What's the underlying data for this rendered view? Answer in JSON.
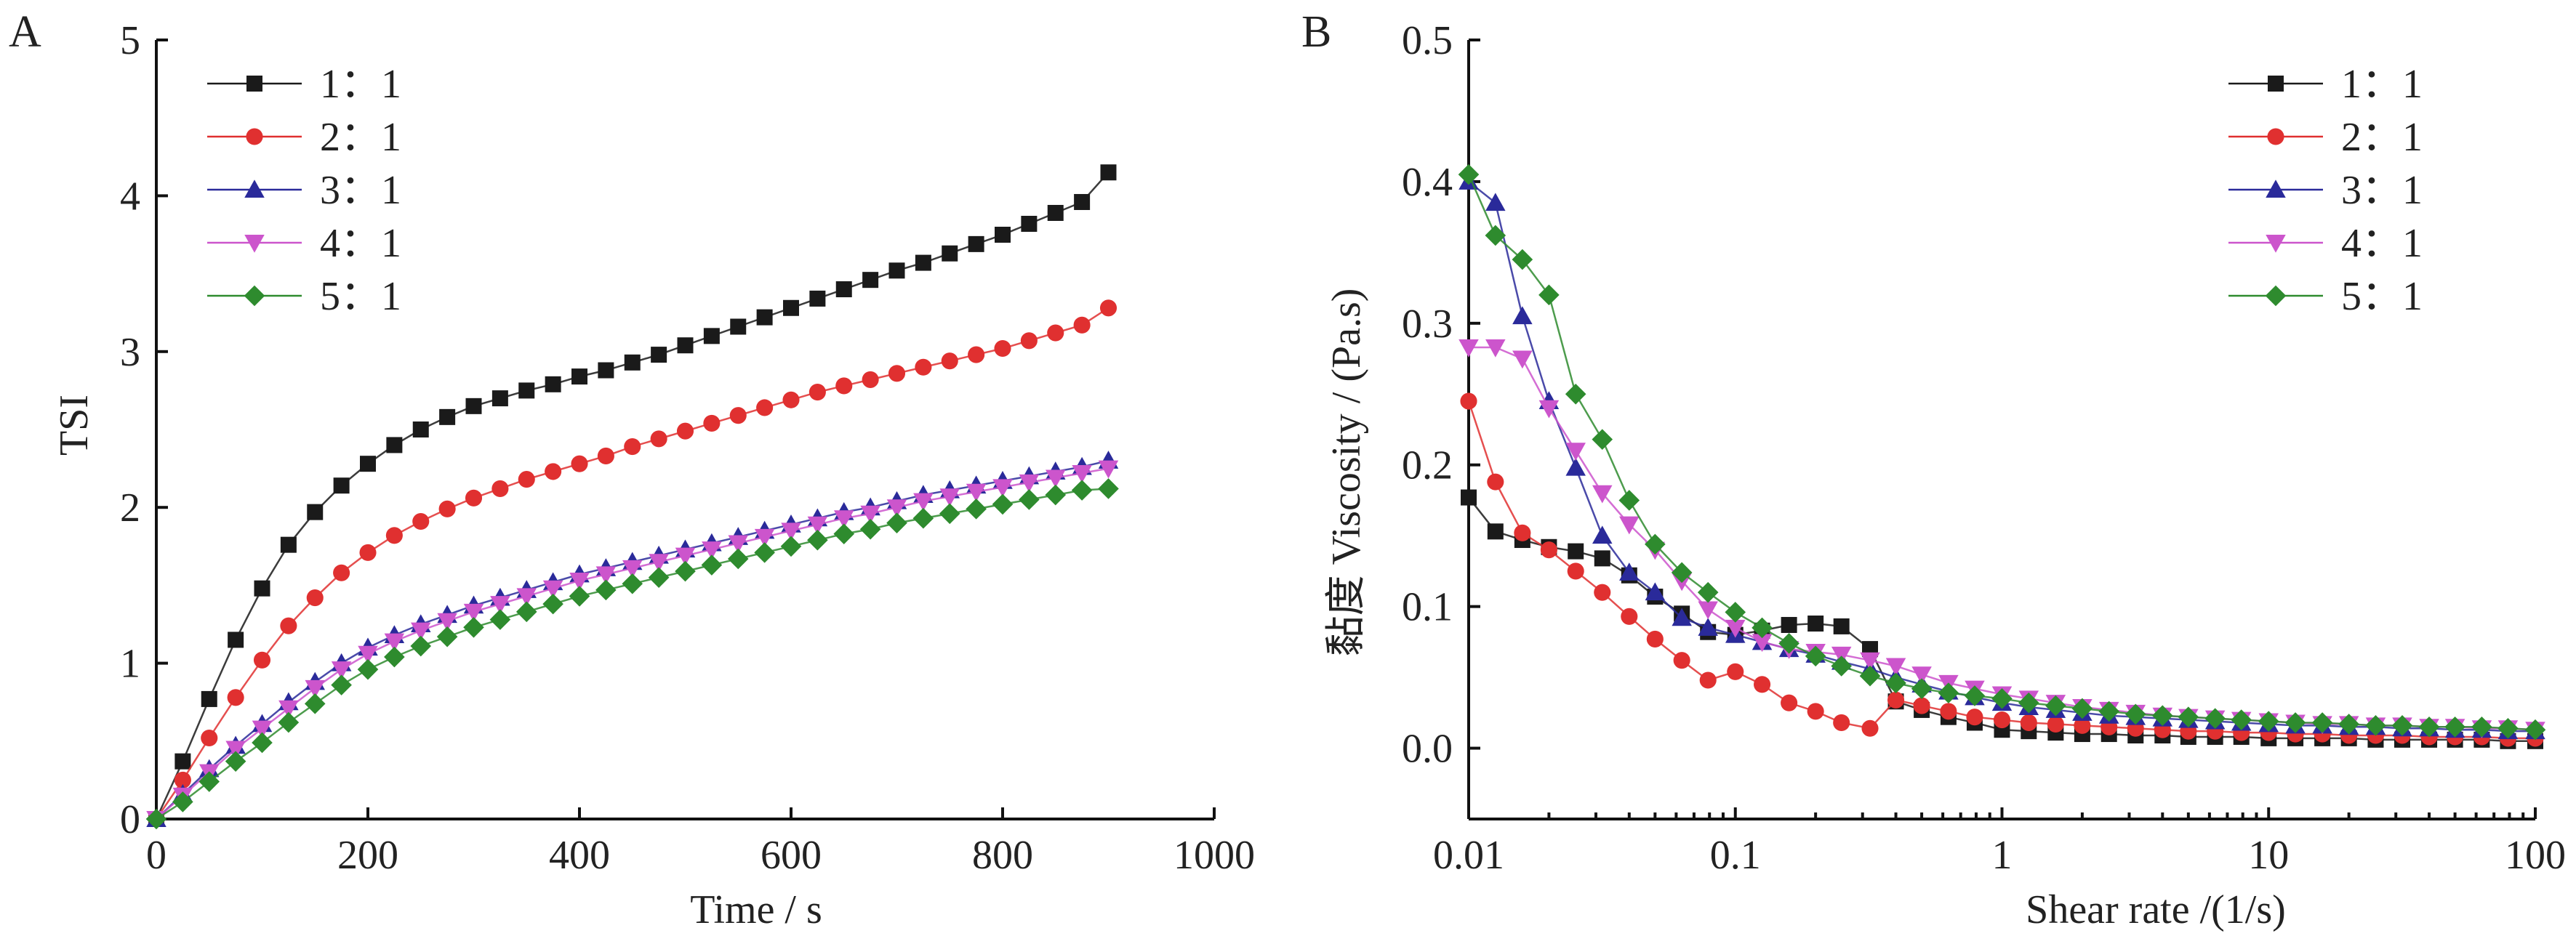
{
  "panels": {
    "a": {
      "letter": "A"
    },
    "b": {
      "letter": "B"
    }
  },
  "chart_data": [
    {
      "type": "line",
      "panel": "A",
      "xlabel": "Time / s",
      "ylabel": "TSI",
      "xlim": [
        0,
        1000
      ],
      "ylim": [
        0,
        5
      ],
      "xticks": [
        0,
        200,
        400,
        600,
        800,
        1000
      ],
      "xtick_labels": [
        "0",
        "200",
        "400",
        "600",
        "800",
        "1000"
      ],
      "yticks": [
        0,
        1,
        2,
        3,
        4,
        5
      ],
      "ytick_labels": [
        "0",
        "1",
        "2",
        "3",
        "4",
        "5"
      ],
      "x_scale": "linear",
      "grid": false,
      "legend_position": "top-left",
      "x": [
        0,
        25,
        50,
        75,
        100,
        125,
        150,
        175,
        200,
        225,
        250,
        275,
        300,
        325,
        350,
        375,
        400,
        425,
        450,
        475,
        500,
        525,
        550,
        575,
        600,
        625,
        650,
        675,
        700,
        725,
        750,
        775,
        800,
        825,
        850,
        875,
        900
      ],
      "series": [
        {
          "name": "1：1",
          "color": "#1a1a1a",
          "marker": "square",
          "values": [
            0,
            0.37,
            0.77,
            1.15,
            1.48,
            1.76,
            1.97,
            2.14,
            2.28,
            2.4,
            2.5,
            2.58,
            2.65,
            2.7,
            2.75,
            2.79,
            2.84,
            2.88,
            2.93,
            2.98,
            3.04,
            3.1,
            3.16,
            3.22,
            3.28,
            3.34,
            3.4,
            3.46,
            3.52,
            3.57,
            3.63,
            3.69,
            3.75,
            3.82,
            3.89,
            3.96,
            4.15
          ]
        },
        {
          "name": "2：1",
          "color": "#e03030",
          "marker": "circle",
          "values": [
            0,
            0.25,
            0.52,
            0.78,
            1.02,
            1.24,
            1.42,
            1.58,
            1.71,
            1.82,
            1.91,
            1.99,
            2.06,
            2.12,
            2.18,
            2.23,
            2.28,
            2.33,
            2.39,
            2.44,
            2.49,
            2.54,
            2.59,
            2.64,
            2.69,
            2.74,
            2.78,
            2.82,
            2.86,
            2.9,
            2.94,
            2.98,
            3.02,
            3.07,
            3.12,
            3.17,
            3.28
          ]
        },
        {
          "name": "3：1",
          "color": "#2a2a9a",
          "marker": "triangle-up",
          "values": [
            0,
            0.16,
            0.32,
            0.47,
            0.61,
            0.75,
            0.88,
            1.0,
            1.1,
            1.18,
            1.25,
            1.31,
            1.37,
            1.42,
            1.47,
            1.52,
            1.57,
            1.61,
            1.65,
            1.69,
            1.73,
            1.77,
            1.81,
            1.85,
            1.89,
            1.93,
            1.97,
            2.0,
            2.04,
            2.08,
            2.11,
            2.14,
            2.17,
            2.2,
            2.23,
            2.26,
            2.3
          ]
        },
        {
          "name": "4：1",
          "color": "#cc55cc",
          "marker": "triangle-down",
          "values": [
            0,
            0.15,
            0.3,
            0.45,
            0.58,
            0.71,
            0.84,
            0.96,
            1.06,
            1.14,
            1.21,
            1.27,
            1.33,
            1.38,
            1.43,
            1.48,
            1.53,
            1.57,
            1.61,
            1.65,
            1.69,
            1.73,
            1.77,
            1.81,
            1.85,
            1.89,
            1.93,
            1.96,
            2.0,
            2.04,
            2.07,
            2.1,
            2.13,
            2.16,
            2.19,
            2.22,
            2.25
          ]
        },
        {
          "name": "5：1",
          "color": "#2e8b2e",
          "marker": "diamond",
          "values": [
            0,
            0.11,
            0.24,
            0.37,
            0.49,
            0.62,
            0.74,
            0.86,
            0.96,
            1.04,
            1.11,
            1.17,
            1.23,
            1.28,
            1.33,
            1.38,
            1.43,
            1.47,
            1.51,
            1.55,
            1.59,
            1.63,
            1.67,
            1.71,
            1.75,
            1.79,
            1.83,
            1.86,
            1.9,
            1.93,
            1.96,
            1.99,
            2.02,
            2.05,
            2.08,
            2.11,
            2.12
          ]
        }
      ]
    },
    {
      "type": "line",
      "panel": "B",
      "xlabel": "Shear rate /(1/s)",
      "ylabel": "黏度 Viscosity / (Pa.s)",
      "x_scale": "log",
      "xlim": [
        0.01,
        100
      ],
      "ylim": [
        -0.05,
        0.5
      ],
      "xticks": [
        0.01,
        0.1,
        1,
        10,
        100
      ],
      "xtick_labels": [
        "0.01",
        "0.1",
        "1",
        "10",
        "100"
      ],
      "yticks": [
        0.0,
        0.1,
        0.2,
        0.3,
        0.4,
        0.5
      ],
      "ytick_labels": [
        "0.0",
        "0.1",
        "0.2",
        "0.3",
        "0.4",
        "0.5"
      ],
      "grid": false,
      "legend_position": "top-right",
      "series": [
        {
          "name": "1：1",
          "color": "#1a1a1a",
          "marker": "square",
          "x": [
            0.01,
            0.0126,
            0.0159,
            0.02,
            0.0252,
            0.0317,
            0.04,
            0.05,
            0.063,
            0.079,
            0.1,
            0.126,
            0.159,
            0.2,
            0.25,
            0.32,
            0.4,
            0.5,
            0.63,
            0.79,
            1,
            1.26,
            1.59,
            2,
            2.52,
            3.17,
            4,
            5,
            6.3,
            7.9,
            10,
            12.6,
            15.9,
            20,
            25.2,
            31.7,
            40,
            50,
            63,
            79,
            100
          ],
          "values": [
            0.177,
            0.153,
            0.147,
            0.142,
            0.139,
            0.134,
            0.122,
            0.107,
            0.095,
            0.082,
            0.08,
            0.083,
            0.087,
            0.088,
            0.086,
            0.07,
            0.033,
            0.027,
            0.022,
            0.018,
            0.013,
            0.012,
            0.011,
            0.01,
            0.01,
            0.009,
            0.009,
            0.008,
            0.008,
            0.008,
            0.007,
            0.007,
            0.007,
            0.007,
            0.006,
            0.006,
            0.006,
            0.006,
            0.006,
            0.005,
            0.005
          ]
        },
        {
          "name": "2：1",
          "color": "#e03030",
          "marker": "circle",
          "x": [
            0.01,
            0.0126,
            0.0159,
            0.02,
            0.0252,
            0.0317,
            0.04,
            0.05,
            0.063,
            0.079,
            0.1,
            0.126,
            0.159,
            0.2,
            0.25,
            0.32,
            0.4,
            0.5,
            0.63,
            0.79,
            1,
            1.26,
            1.59,
            2,
            2.52,
            3.17,
            4,
            5,
            6.3,
            7.9,
            10,
            12.6,
            15.9,
            20,
            25.2,
            31.7,
            40,
            50,
            63,
            79,
            100
          ],
          "values": [
            0.245,
            0.188,
            0.152,
            0.14,
            0.125,
            0.11,
            0.093,
            0.077,
            0.062,
            0.048,
            0.054,
            0.045,
            0.032,
            0.026,
            0.018,
            0.014,
            0.034,
            0.03,
            0.026,
            0.022,
            0.02,
            0.018,
            0.017,
            0.016,
            0.015,
            0.014,
            0.013,
            0.012,
            0.012,
            0.011,
            0.011,
            0.01,
            0.01,
            0.009,
            0.009,
            0.009,
            0.008,
            0.008,
            0.008,
            0.007,
            0.007
          ]
        },
        {
          "name": "3：1",
          "color": "#2a2a9a",
          "marker": "triangle-up",
          "x": [
            0.01,
            0.0126,
            0.0159,
            0.02,
            0.0252,
            0.0317,
            0.04,
            0.05,
            0.063,
            0.079,
            0.1,
            0.126,
            0.159,
            0.2,
            0.25,
            0.32,
            0.4,
            0.5,
            0.63,
            0.79,
            1,
            1.26,
            1.59,
            2,
            2.52,
            3.17,
            4,
            5,
            6.3,
            7.9,
            10,
            12.6,
            15.9,
            20,
            25.2,
            31.7,
            40,
            50,
            63,
            79,
            100
          ],
          "values": [
            0.4,
            0.385,
            0.305,
            0.245,
            0.198,
            0.15,
            0.124,
            0.11,
            0.092,
            0.085,
            0.08,
            0.075,
            0.07,
            0.066,
            0.061,
            0.056,
            0.05,
            0.045,
            0.04,
            0.036,
            0.032,
            0.029,
            0.027,
            0.025,
            0.023,
            0.022,
            0.021,
            0.02,
            0.019,
            0.018,
            0.017,
            0.016,
            0.016,
            0.015,
            0.015,
            0.014,
            0.014,
            0.013,
            0.013,
            0.012,
            0.012
          ]
        },
        {
          "name": "4：1",
          "color": "#cc55cc",
          "marker": "triangle-down",
          "x": [
            0.01,
            0.0126,
            0.0159,
            0.02,
            0.0252,
            0.0317,
            0.04,
            0.05,
            0.063,
            0.079,
            0.1,
            0.126,
            0.159,
            0.2,
            0.25,
            0.32,
            0.4,
            0.5,
            0.63,
            0.79,
            1,
            1.26,
            1.59,
            2,
            2.52,
            3.17,
            4,
            5,
            6.3,
            7.9,
            10,
            12.6,
            15.9,
            20,
            25.2,
            31.7,
            40,
            50,
            63,
            79,
            100
          ],
          "values": [
            0.283,
            0.283,
            0.275,
            0.24,
            0.21,
            0.18,
            0.158,
            0.14,
            0.118,
            0.098,
            0.085,
            0.075,
            0.07,
            0.068,
            0.066,
            0.062,
            0.058,
            0.052,
            0.046,
            0.042,
            0.038,
            0.035,
            0.032,
            0.029,
            0.027,
            0.025,
            0.023,
            0.022,
            0.021,
            0.02,
            0.019,
            0.018,
            0.017,
            0.017,
            0.016,
            0.016,
            0.015,
            0.015,
            0.014,
            0.014,
            0.013
          ]
        },
        {
          "name": "5：1",
          "color": "#2e8b2e",
          "marker": "diamond",
          "x": [
            0.01,
            0.0126,
            0.0159,
            0.02,
            0.0252,
            0.0317,
            0.04,
            0.05,
            0.063,
            0.079,
            0.1,
            0.126,
            0.159,
            0.2,
            0.25,
            0.32,
            0.4,
            0.5,
            0.63,
            0.79,
            1,
            1.26,
            1.59,
            2,
            2.52,
            3.17,
            4,
            5,
            6.3,
            7.9,
            10,
            12.6,
            15.9,
            20,
            25.2,
            31.7,
            40,
            50,
            63,
            79,
            100
          ],
          "values": [
            0.405,
            0.362,
            0.345,
            0.32,
            0.25,
            0.218,
            0.175,
            0.144,
            0.124,
            0.11,
            0.096,
            0.085,
            0.074,
            0.065,
            0.058,
            0.051,
            0.046,
            0.042,
            0.039,
            0.037,
            0.035,
            0.032,
            0.03,
            0.028,
            0.026,
            0.024,
            0.023,
            0.022,
            0.021,
            0.02,
            0.019,
            0.018,
            0.018,
            0.017,
            0.016,
            0.016,
            0.015,
            0.015,
            0.015,
            0.014,
            0.013
          ]
        }
      ]
    }
  ]
}
